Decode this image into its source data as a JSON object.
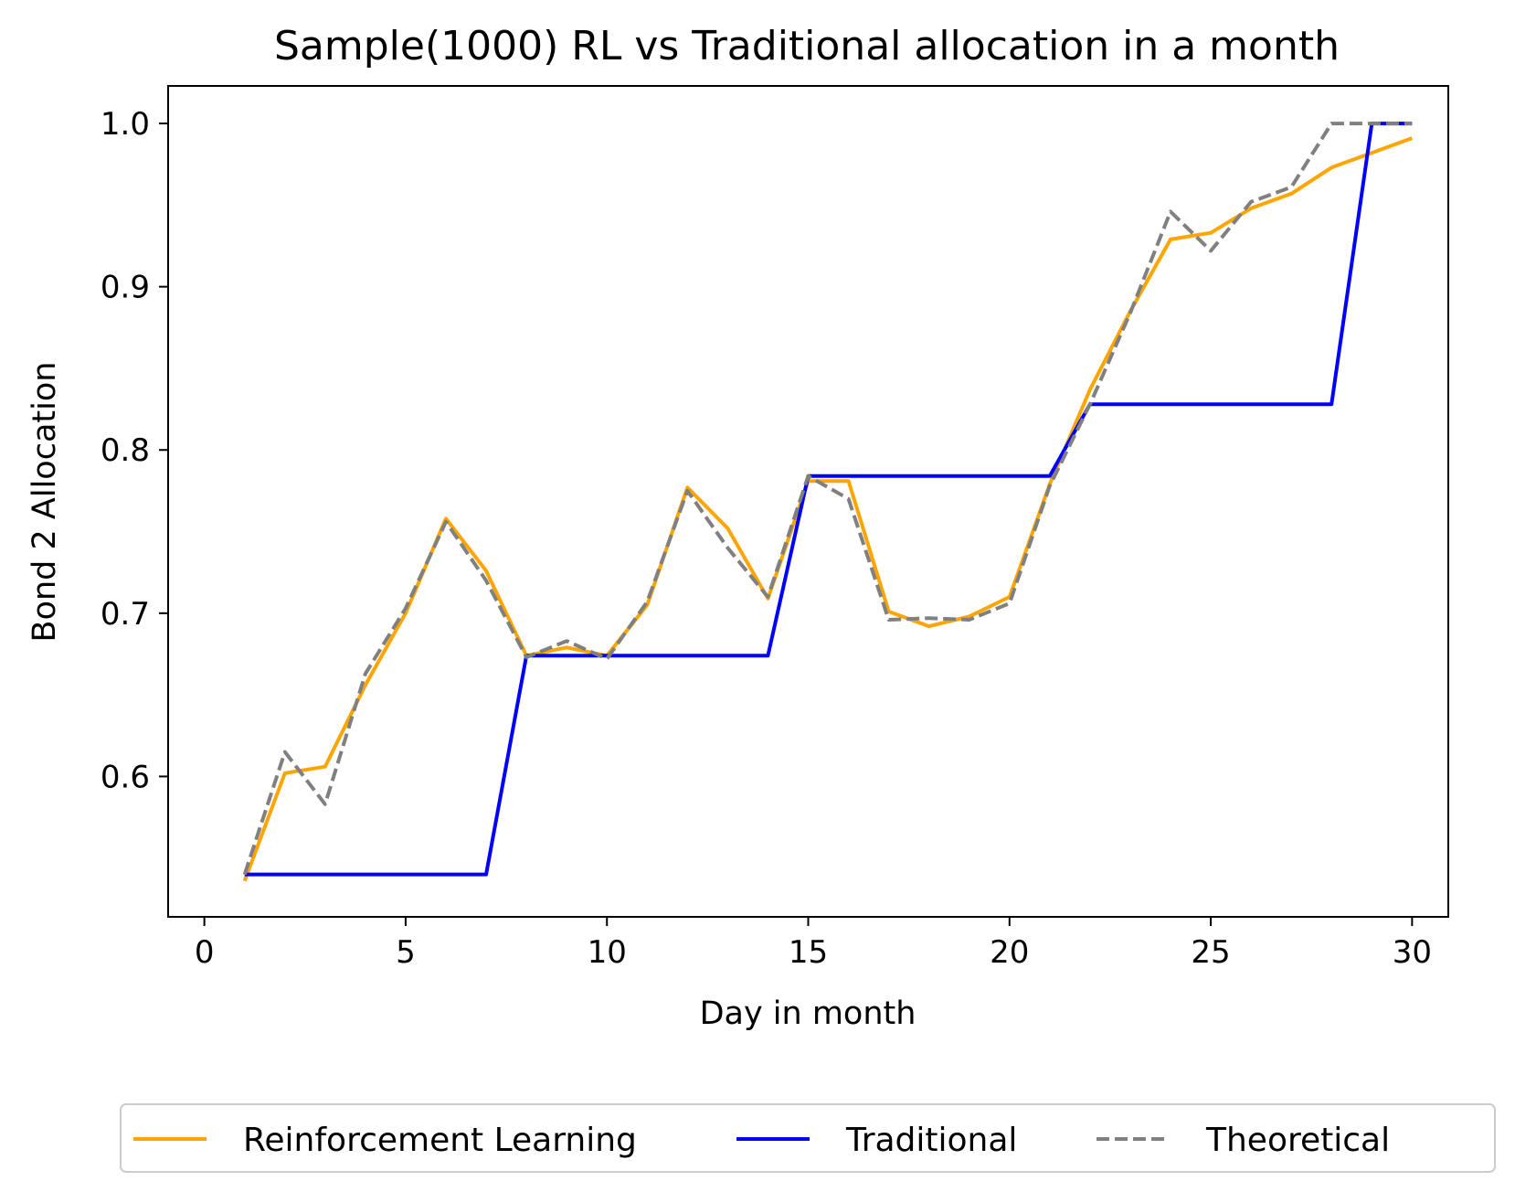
{
  "chart_data": {
    "type": "line",
    "title": "Sample(1000) RL vs Traditional allocation in a month",
    "xlabel": "Day in month",
    "ylabel": "Bond 2 Allocation",
    "xlim": [
      -0.9,
      30.9
    ],
    "ylim": [
      0.514,
      1.023
    ],
    "x_ticks": [
      0,
      5,
      10,
      15,
      20,
      25,
      30
    ],
    "x_tick_labels": [
      "0",
      "5",
      "10",
      "15",
      "20",
      "25",
      "30"
    ],
    "y_ticks": [
      0.6,
      0.7,
      0.8,
      0.9,
      1.0
    ],
    "y_tick_labels": [
      "0.6",
      "0.7",
      "0.8",
      "0.9",
      "1.0"
    ],
    "grid": false,
    "legend_position": "bottom-center",
    "x": [
      1,
      2,
      3,
      4,
      5,
      6,
      7,
      8,
      9,
      10,
      11,
      12,
      13,
      14,
      15,
      16,
      17,
      18,
      19,
      20,
      21,
      22,
      23,
      24,
      25,
      26,
      27,
      28,
      29,
      30
    ],
    "series": [
      {
        "name": "Reinforcement Learning",
        "color": "#ffa500",
        "style": "solid",
        "values": [
          0.536,
          0.602,
          0.606,
          0.656,
          0.7,
          0.758,
          0.726,
          0.674,
          0.679,
          0.674,
          0.705,
          0.777,
          0.752,
          0.709,
          0.781,
          0.781,
          0.701,
          0.692,
          0.698,
          0.71,
          0.779,
          0.837,
          0.885,
          0.929,
          0.933,
          0.948,
          0.957,
          0.973,
          0.982,
          0.991
        ]
      },
      {
        "name": "Traditional",
        "color": "#0000ff",
        "style": "solid",
        "step": "post",
        "values": [
          0.54,
          0.54,
          0.54,
          0.54,
          0.54,
          0.54,
          0.54,
          0.674,
          0.674,
          0.674,
          0.674,
          0.674,
          0.674,
          0.674,
          0.784,
          0.784,
          0.784,
          0.784,
          0.784,
          0.784,
          0.784,
          0.828,
          0.828,
          0.828,
          0.828,
          0.828,
          0.828,
          0.828,
          1.0,
          1.0
        ]
      },
      {
        "name": "Theoretical",
        "color": "#808080",
        "style": "dashed",
        "values": [
          0.54,
          0.615,
          0.583,
          0.663,
          0.703,
          0.756,
          0.72,
          0.673,
          0.683,
          0.672,
          0.707,
          0.775,
          0.74,
          0.71,
          0.784,
          0.77,
          0.696,
          0.697,
          0.696,
          0.706,
          0.778,
          0.828,
          0.884,
          0.946,
          0.922,
          0.952,
          0.961,
          1.0,
          1.0,
          1.0
        ]
      }
    ]
  }
}
